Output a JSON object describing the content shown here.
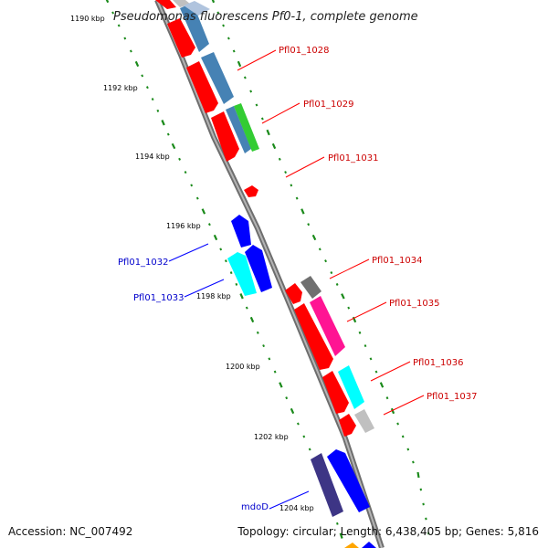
{
  "title": "Pseudomonas fluorescens Pf0-1, complete genome",
  "footer": {
    "accession": "Accession: NC_007492",
    "summary": "Topology: circular; Length: 6,438,405 bp; Genes: 5,816"
  },
  "colors": {
    "backbone": "#8a8a8a",
    "scale_dots": "#1a8a1a",
    "label_red": "#cc0000",
    "label_blue": "#0000cc"
  },
  "scale_labels": [
    "1190 kbp",
    "1192 kbp",
    "1194 kbp",
    "1196 kbp",
    "1198 kbp",
    "1200 kbp",
    "1202 kbp",
    "1204 kbp"
  ],
  "gene_labels": [
    {
      "text": "Pfl01_1028",
      "color": "red"
    },
    {
      "text": "Pfl01_1029",
      "color": "red"
    },
    {
      "text": "Pfl01_1031",
      "color": "red"
    },
    {
      "text": "Pfl01_1032",
      "color": "blue"
    },
    {
      "text": "Pfl01_1033",
      "color": "blue"
    },
    {
      "text": "Pfl01_1034",
      "color": "red"
    },
    {
      "text": "Pfl01_1035",
      "color": "red"
    },
    {
      "text": "Pfl01_1036",
      "color": "red"
    },
    {
      "text": "Pfl01_1037",
      "color": "red"
    },
    {
      "text": "mdoD",
      "color": "blue"
    }
  ],
  "gene_colors": [
    "#ff0000",
    "#4682b4",
    "#b0c4de",
    "#33cc33",
    "#0000ff",
    "#00ffff",
    "#707070",
    "#ff1493",
    "#c0c0c0",
    "#3d3585",
    "#ffa500"
  ]
}
